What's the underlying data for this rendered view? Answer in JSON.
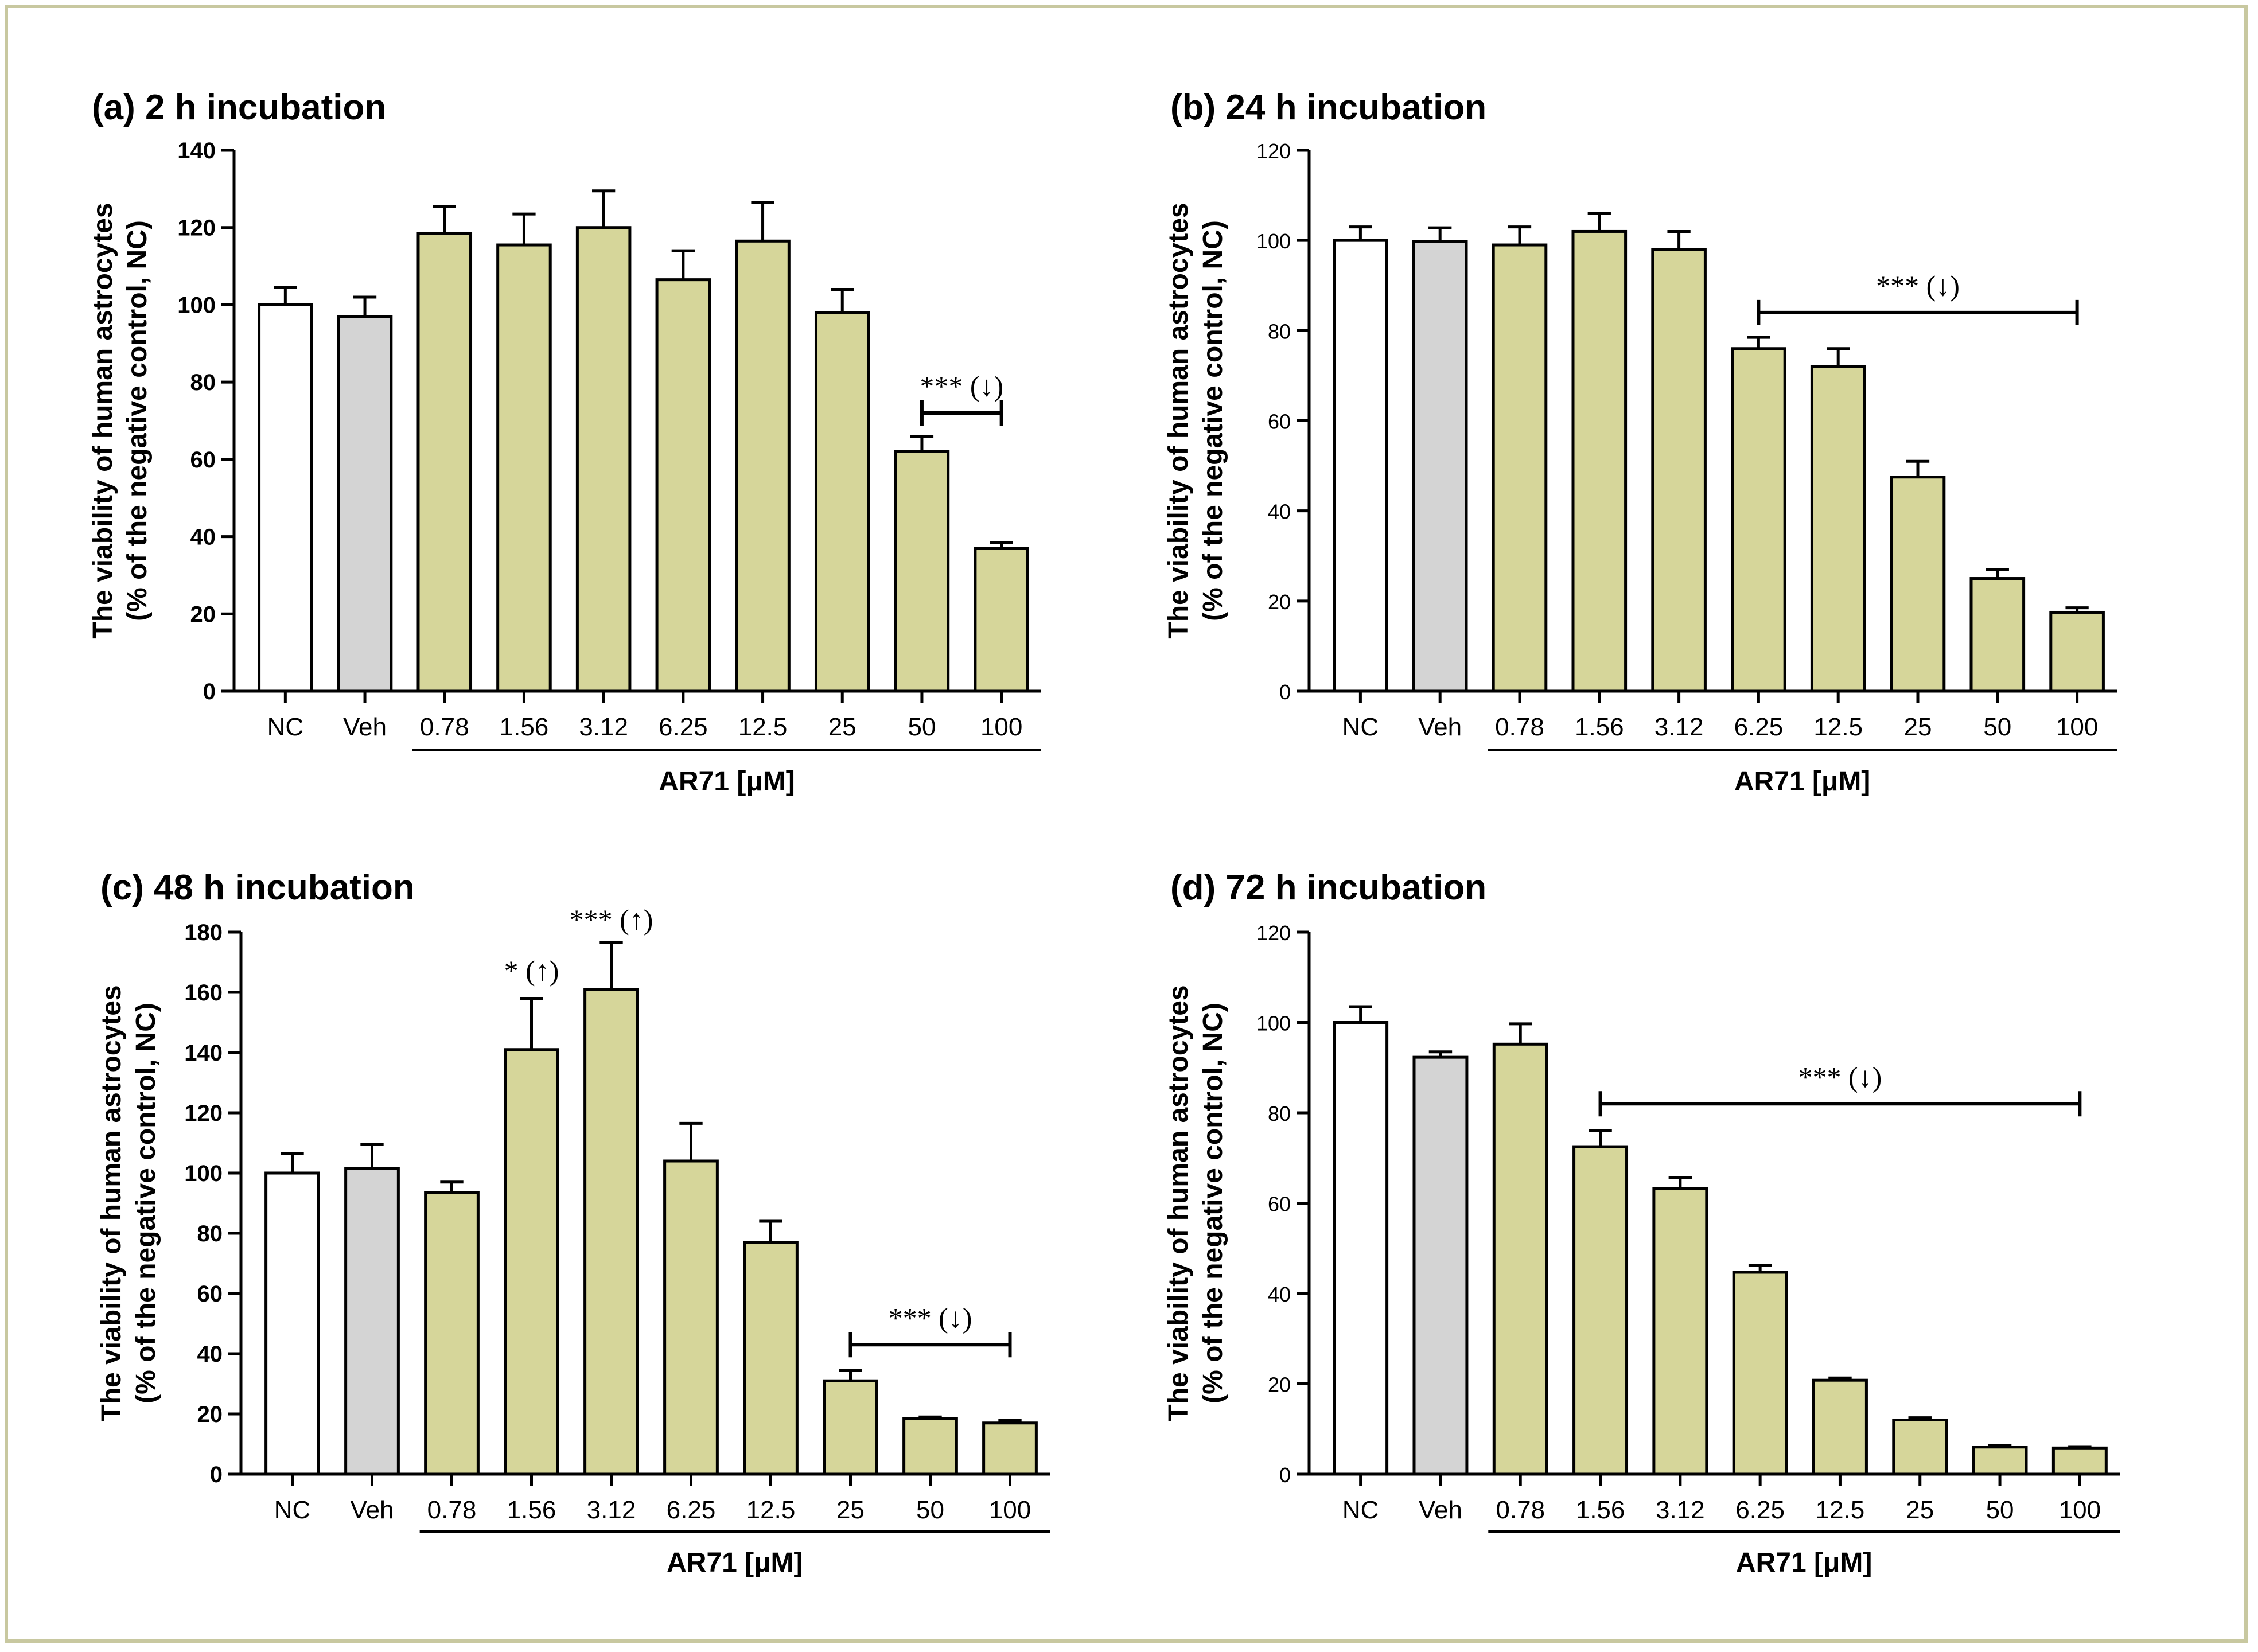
{
  "panel_bg": "#ffffff",
  "frame_color": "#c8c8a0",
  "chart_data": [
    {
      "type": "bar",
      "title": "(a) 2 h incubation",
      "ylabel_line1": "The viability of human astrocytes",
      "ylabel_line2": "(% of the negative control, NC)",
      "xlabel": "AR71 [μM]",
      "categories": [
        "NC",
        "Veh",
        "0.78",
        "1.56",
        "3.12",
        "6.25",
        "12.5",
        "25",
        "50",
        "100"
      ],
      "values": [
        100,
        97,
        118.5,
        115.5,
        120,
        106.5,
        116.5,
        98,
        62,
        37
      ],
      "errors": [
        4.5,
        5,
        7,
        8,
        9.5,
        7.5,
        10,
        6,
        4,
        1.5
      ],
      "colors": [
        "#ffffff",
        "#d4d4d4",
        "#d6d69a",
        "#d6d69a",
        "#d6d69a",
        "#d6d69a",
        "#d6d69a",
        "#d6d69a",
        "#d6d69a",
        "#d6d69a"
      ],
      "ylim": [
        0,
        140
      ],
      "yticks": [
        0,
        20,
        40,
        60,
        80,
        100,
        120,
        140
      ],
      "ytick_style": "bold",
      "annotations": [
        {
          "label": "*** (↓)",
          "type": "bracket",
          "from": 8,
          "to": 9,
          "y": 72
        }
      ]
    },
    {
      "type": "bar",
      "title": "(b) 24 h incubation",
      "ylabel_line1": "The viability of human astrocytes",
      "ylabel_line2": "(% of the negative control, NC)",
      "xlabel": "AR71 [μM]",
      "categories": [
        "NC",
        "Veh",
        "0.78",
        "1.56",
        "3.12",
        "6.25",
        "12.5",
        "25",
        "50",
        "100"
      ],
      "values": [
        100,
        99.8,
        99,
        102,
        98,
        76,
        72,
        47.5,
        25,
        17.5
      ],
      "errors": [
        3,
        3,
        4,
        4,
        4,
        2.5,
        4,
        3.5,
        2,
        1
      ],
      "colors": [
        "#ffffff",
        "#d4d4d4",
        "#d6d69a",
        "#d6d69a",
        "#d6d69a",
        "#d6d69a",
        "#d6d69a",
        "#d6d69a",
        "#d6d69a",
        "#d6d69a"
      ],
      "ylim": [
        0,
        120
      ],
      "yticks": [
        0,
        20,
        40,
        60,
        80,
        100,
        120
      ],
      "ytick_style": "normal",
      "annotations": [
        {
          "label": "*** (↓)",
          "type": "bracket",
          "from": 5,
          "to": 9,
          "y": 84
        }
      ]
    },
    {
      "type": "bar",
      "title": "(c) 48 h incubation",
      "ylabel_line1": "The viability of human astrocytes",
      "ylabel_line2": "(% of the negative control, NC)",
      "xlabel": "AR71 [μM]",
      "categories": [
        "NC",
        "Veh",
        "0.78",
        "1.56",
        "3.12",
        "6.25",
        "12.5",
        "25",
        "50",
        "100"
      ],
      "values": [
        100,
        101.5,
        93.5,
        141,
        161,
        104,
        77,
        31,
        18.5,
        17
      ],
      "errors": [
        6.5,
        8,
        3.5,
        17,
        15.5,
        12.5,
        7,
        3.5,
        0.5,
        0.8
      ],
      "colors": [
        "#ffffff",
        "#d4d4d4",
        "#d6d69a",
        "#d6d69a",
        "#d6d69a",
        "#d6d69a",
        "#d6d69a",
        "#d6d69a",
        "#d6d69a",
        "#d6d69a"
      ],
      "ylim": [
        0,
        180
      ],
      "yticks": [
        0,
        20,
        40,
        60,
        80,
        100,
        120,
        140,
        160,
        180
      ],
      "ytick_style": "bold",
      "annotations": [
        {
          "label": "* (↑)",
          "type": "text",
          "at": 3,
          "y": 164
        },
        {
          "label": "*** (↑)",
          "type": "text",
          "at": 4,
          "y": 181
        },
        {
          "label": "*** (↓)",
          "type": "bracket",
          "from": 7,
          "to": 9,
          "y": 43
        }
      ]
    },
    {
      "type": "bar",
      "title": "(d) 72 h incubation",
      "ylabel_line1": "The viability of human astrocytes",
      "ylabel_line2": "(% of the negative control, NC)",
      "xlabel": "AR71 [μM]",
      "categories": [
        "NC",
        "Veh",
        "0.78",
        "1.56",
        "3.12",
        "6.25",
        "12.5",
        "25",
        "50",
        "100"
      ],
      "values": [
        100,
        92.3,
        95.2,
        72.5,
        63.2,
        44.7,
        20.8,
        12,
        6,
        5.8
      ],
      "errors": [
        3.5,
        1.2,
        4.5,
        3.5,
        2.5,
        1.5,
        0.5,
        0.5,
        0.3,
        0.3
      ],
      "colors": [
        "#ffffff",
        "#d4d4d4",
        "#d6d69a",
        "#d6d69a",
        "#d6d69a",
        "#d6d69a",
        "#d6d69a",
        "#d6d69a",
        "#d6d69a",
        "#d6d69a"
      ],
      "ylim": [
        0,
        120
      ],
      "yticks": [
        0,
        20,
        40,
        60,
        80,
        100,
        120
      ],
      "ytick_style": "normal",
      "annotations": [
        {
          "label": "*** (↓)",
          "type": "bracket",
          "from": 3,
          "to": 9,
          "y": 82
        }
      ]
    }
  ]
}
